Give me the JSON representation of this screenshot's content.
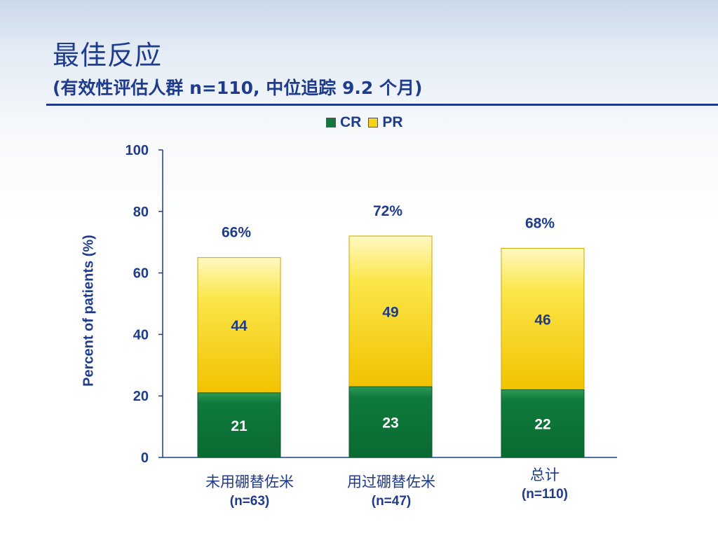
{
  "title": "最佳反应",
  "subtitle": "(有效性评估人群 n=110, 中位追踪 9.2 个月)",
  "legend": [
    {
      "label": "CR",
      "color": "#0f7a3c"
    },
    {
      "label": "PR",
      "color": "#f4d31a"
    }
  ],
  "colors": {
    "title": "#1f3b8c",
    "cr": "#0f7a3c",
    "pr": "#f4d31a",
    "text": "#1f3b8c"
  },
  "chart_data": {
    "type": "bar",
    "stacked": true,
    "categories": [
      "未用硼替佐米",
      "用过硼替佐米",
      "总计"
    ],
    "category_n": [
      "(n=63)",
      "(n=47)",
      "(n=110)"
    ],
    "series": [
      {
        "name": "CR",
        "values": [
          21,
          23,
          22
        ]
      },
      {
        "name": "PR",
        "values": [
          44,
          49,
          46
        ]
      }
    ],
    "totals": [
      "66%",
      "72%",
      "68%"
    ],
    "ylabel": "Percent of patients (%)",
    "xlabel": "",
    "ylim": [
      0,
      100
    ],
    "yticks": [
      0,
      20,
      40,
      60,
      80,
      100
    ],
    "grid": false,
    "legend_position": "top-center"
  }
}
